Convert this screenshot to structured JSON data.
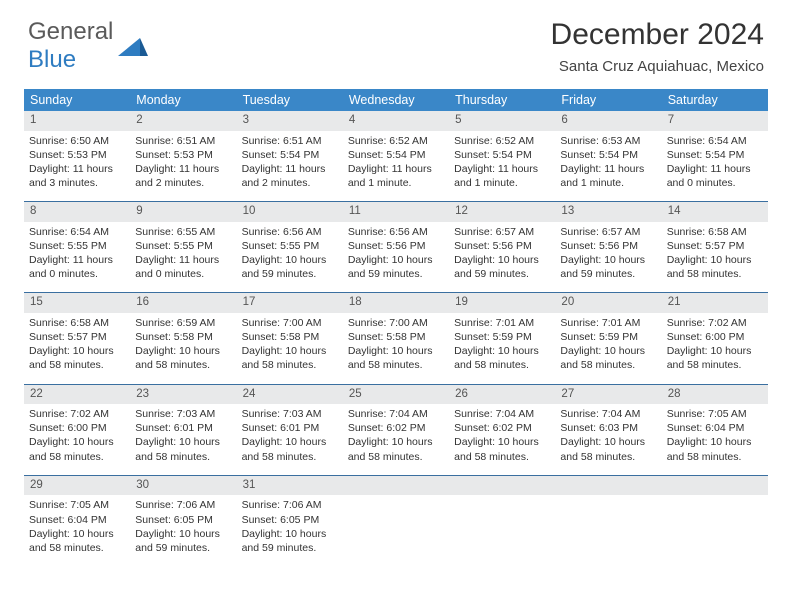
{
  "logo": {
    "general": "General",
    "blue": "Blue"
  },
  "title": "December 2024",
  "location": "Santa Cruz Aquiahuac, Mexico",
  "colors": {
    "header_bg": "#3a87c8",
    "daynum_bg": "#e8e9ea",
    "rule": "#3a6fa0",
    "logo_gray": "#5a5a5a",
    "logo_blue": "#2e7cc1"
  },
  "day_names": [
    "Sunday",
    "Monday",
    "Tuesday",
    "Wednesday",
    "Thursday",
    "Friday",
    "Saturday"
  ],
  "weeks": [
    [
      {
        "n": "1",
        "sr": "Sunrise: 6:50 AM",
        "ss": "Sunset: 5:53 PM",
        "dl": "Daylight: 11 hours and 3 minutes."
      },
      {
        "n": "2",
        "sr": "Sunrise: 6:51 AM",
        "ss": "Sunset: 5:53 PM",
        "dl": "Daylight: 11 hours and 2 minutes."
      },
      {
        "n": "3",
        "sr": "Sunrise: 6:51 AM",
        "ss": "Sunset: 5:54 PM",
        "dl": "Daylight: 11 hours and 2 minutes."
      },
      {
        "n": "4",
        "sr": "Sunrise: 6:52 AM",
        "ss": "Sunset: 5:54 PM",
        "dl": "Daylight: 11 hours and 1 minute."
      },
      {
        "n": "5",
        "sr": "Sunrise: 6:52 AM",
        "ss": "Sunset: 5:54 PM",
        "dl": "Daylight: 11 hours and 1 minute."
      },
      {
        "n": "6",
        "sr": "Sunrise: 6:53 AM",
        "ss": "Sunset: 5:54 PM",
        "dl": "Daylight: 11 hours and 1 minute."
      },
      {
        "n": "7",
        "sr": "Sunrise: 6:54 AM",
        "ss": "Sunset: 5:54 PM",
        "dl": "Daylight: 11 hours and 0 minutes."
      }
    ],
    [
      {
        "n": "8",
        "sr": "Sunrise: 6:54 AM",
        "ss": "Sunset: 5:55 PM",
        "dl": "Daylight: 11 hours and 0 minutes."
      },
      {
        "n": "9",
        "sr": "Sunrise: 6:55 AM",
        "ss": "Sunset: 5:55 PM",
        "dl": "Daylight: 11 hours and 0 minutes."
      },
      {
        "n": "10",
        "sr": "Sunrise: 6:56 AM",
        "ss": "Sunset: 5:55 PM",
        "dl": "Daylight: 10 hours and 59 minutes."
      },
      {
        "n": "11",
        "sr": "Sunrise: 6:56 AM",
        "ss": "Sunset: 5:56 PM",
        "dl": "Daylight: 10 hours and 59 minutes."
      },
      {
        "n": "12",
        "sr": "Sunrise: 6:57 AM",
        "ss": "Sunset: 5:56 PM",
        "dl": "Daylight: 10 hours and 59 minutes."
      },
      {
        "n": "13",
        "sr": "Sunrise: 6:57 AM",
        "ss": "Sunset: 5:56 PM",
        "dl": "Daylight: 10 hours and 59 minutes."
      },
      {
        "n": "14",
        "sr": "Sunrise: 6:58 AM",
        "ss": "Sunset: 5:57 PM",
        "dl": "Daylight: 10 hours and 58 minutes."
      }
    ],
    [
      {
        "n": "15",
        "sr": "Sunrise: 6:58 AM",
        "ss": "Sunset: 5:57 PM",
        "dl": "Daylight: 10 hours and 58 minutes."
      },
      {
        "n": "16",
        "sr": "Sunrise: 6:59 AM",
        "ss": "Sunset: 5:58 PM",
        "dl": "Daylight: 10 hours and 58 minutes."
      },
      {
        "n": "17",
        "sr": "Sunrise: 7:00 AM",
        "ss": "Sunset: 5:58 PM",
        "dl": "Daylight: 10 hours and 58 minutes."
      },
      {
        "n": "18",
        "sr": "Sunrise: 7:00 AM",
        "ss": "Sunset: 5:58 PM",
        "dl": "Daylight: 10 hours and 58 minutes."
      },
      {
        "n": "19",
        "sr": "Sunrise: 7:01 AM",
        "ss": "Sunset: 5:59 PM",
        "dl": "Daylight: 10 hours and 58 minutes."
      },
      {
        "n": "20",
        "sr": "Sunrise: 7:01 AM",
        "ss": "Sunset: 5:59 PM",
        "dl": "Daylight: 10 hours and 58 minutes."
      },
      {
        "n": "21",
        "sr": "Sunrise: 7:02 AM",
        "ss": "Sunset: 6:00 PM",
        "dl": "Daylight: 10 hours and 58 minutes."
      }
    ],
    [
      {
        "n": "22",
        "sr": "Sunrise: 7:02 AM",
        "ss": "Sunset: 6:00 PM",
        "dl": "Daylight: 10 hours and 58 minutes."
      },
      {
        "n": "23",
        "sr": "Sunrise: 7:03 AM",
        "ss": "Sunset: 6:01 PM",
        "dl": "Daylight: 10 hours and 58 minutes."
      },
      {
        "n": "24",
        "sr": "Sunrise: 7:03 AM",
        "ss": "Sunset: 6:01 PM",
        "dl": "Daylight: 10 hours and 58 minutes."
      },
      {
        "n": "25",
        "sr": "Sunrise: 7:04 AM",
        "ss": "Sunset: 6:02 PM",
        "dl": "Daylight: 10 hours and 58 minutes."
      },
      {
        "n": "26",
        "sr": "Sunrise: 7:04 AM",
        "ss": "Sunset: 6:02 PM",
        "dl": "Daylight: 10 hours and 58 minutes."
      },
      {
        "n": "27",
        "sr": "Sunrise: 7:04 AM",
        "ss": "Sunset: 6:03 PM",
        "dl": "Daylight: 10 hours and 58 minutes."
      },
      {
        "n": "28",
        "sr": "Sunrise: 7:05 AM",
        "ss": "Sunset: 6:04 PM",
        "dl": "Daylight: 10 hours and 58 minutes."
      }
    ],
    [
      {
        "n": "29",
        "sr": "Sunrise: 7:05 AM",
        "ss": "Sunset: 6:04 PM",
        "dl": "Daylight: 10 hours and 58 minutes."
      },
      {
        "n": "30",
        "sr": "Sunrise: 7:06 AM",
        "ss": "Sunset: 6:05 PM",
        "dl": "Daylight: 10 hours and 59 minutes."
      },
      {
        "n": "31",
        "sr": "Sunrise: 7:06 AM",
        "ss": "Sunset: 6:05 PM",
        "dl": "Daylight: 10 hours and 59 minutes."
      },
      null,
      null,
      null,
      null
    ]
  ]
}
